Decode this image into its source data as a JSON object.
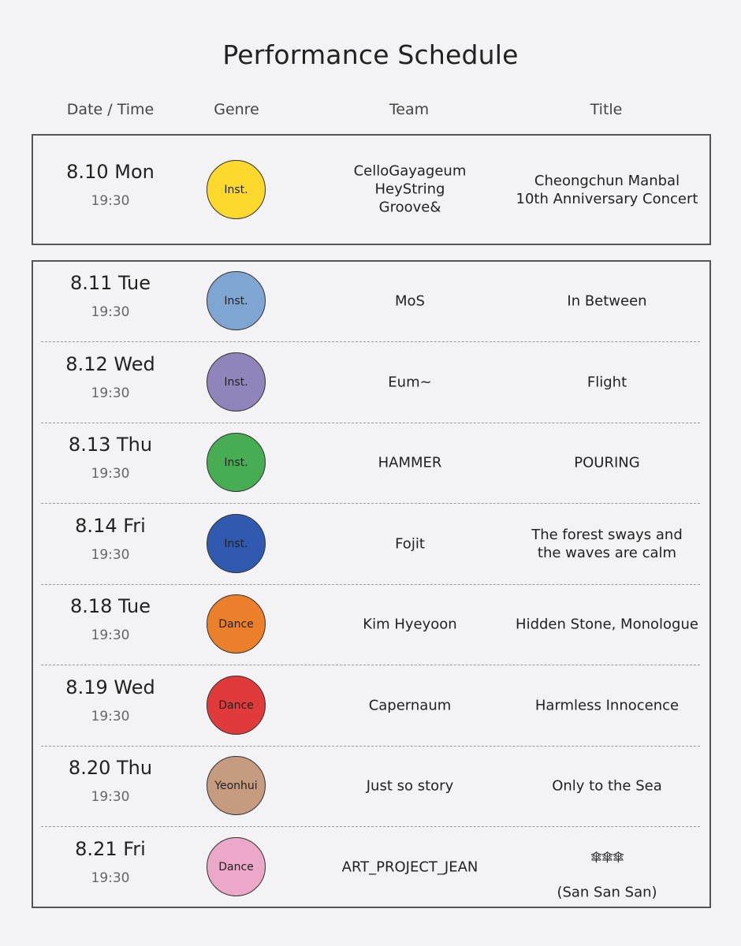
{
  "page_title": "Performance Schedule",
  "columns": {
    "date_time": "Date / Time",
    "genre": "Genre",
    "team": "Team",
    "title": "Title"
  },
  "featured": {
    "date": "8.10 Mon",
    "time": "19:30",
    "genre": "Inst.",
    "genre_color": "#fcd92c",
    "team": "CelloGayageum\nHeyString\nGroove&",
    "title": "Cheongchun Manbal\n10th Anniversary Concert"
  },
  "schedule": [
    {
      "date": "8.11 Tue",
      "time": "19:30",
      "genre": "Inst.",
      "genre_color": "#7fa6d3",
      "team": "MoS",
      "title": "In Between"
    },
    {
      "date": "8.12 Wed",
      "time": "19:30",
      "genre": "Inst.",
      "genre_color": "#9184bb",
      "team": "Eum~",
      "title": "Flight"
    },
    {
      "date": "8.13 Thu",
      "time": "19:30",
      "genre": "Inst.",
      "genre_color": "#47ad52",
      "team": "HAMMER",
      "title": "POURING"
    },
    {
      "date": "8.14 Fri",
      "time": "19:30",
      "genre": "Inst.",
      "genre_color": "#2f5ab0",
      "team": "Fojit",
      "title": "The forest sways and\nthe waves are calm"
    },
    {
      "date": "8.18 Tue",
      "time": "19:30",
      "genre": "Dance",
      "genre_color": "#eb7f2a",
      "team": "Kim Hyeyoon",
      "title": "Hidden Stone, Monologue"
    },
    {
      "date": "8.19 Wed",
      "time": "19:30",
      "genre": "Dance",
      "genre_color": "#e13a3a",
      "team": "Capernaum",
      "title": "Harmless Innocence"
    },
    {
      "date": "8.20 Thu",
      "time": "19:30",
      "genre": "Yeonhui",
      "genre_color": "#c69b80",
      "team": "Just so story",
      "title": "Only to the Sea"
    },
    {
      "date": "8.21 Fri",
      "time": "19:30",
      "genre": "Dance",
      "genre_color": "#eba8c8",
      "team": "ART_PROJECT_JEAN",
      "title_glyph": "傘傘傘",
      "title": "(San San San)"
    }
  ]
}
